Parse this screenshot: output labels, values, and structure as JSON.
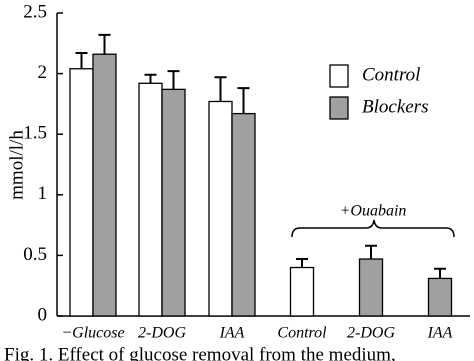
{
  "chart_data": {
    "type": "bar",
    "y_label": "mmol/l/h",
    "categories": [
      "−Glucose",
      "2-DOG",
      "IAA",
      "Control",
      "2-DOG",
      "IAA"
    ],
    "series": [
      {
        "name": "Control",
        "color": "#ffffff",
        "values": [
          2.04,
          1.92,
          1.77,
          0.4,
          null,
          null
        ],
        "errors": [
          0.13,
          0.07,
          0.2,
          0.07,
          null,
          null
        ]
      },
      {
        "name": "Blockers",
        "color": "#a0a0a0",
        "values": [
          2.16,
          1.87,
          1.67,
          null,
          0.47,
          0.31
        ],
        "errors": [
          0.16,
          0.15,
          0.21,
          null,
          0.11,
          0.08
        ]
      }
    ],
    "ylim": [
      0,
      2.5
    ],
    "yticks": [
      0,
      0.5,
      1,
      1.5,
      2,
      2.5
    ],
    "annotation": "+Ouabain",
    "caption": "Fig. 1. Effect of glucose removal from the medium,"
  }
}
